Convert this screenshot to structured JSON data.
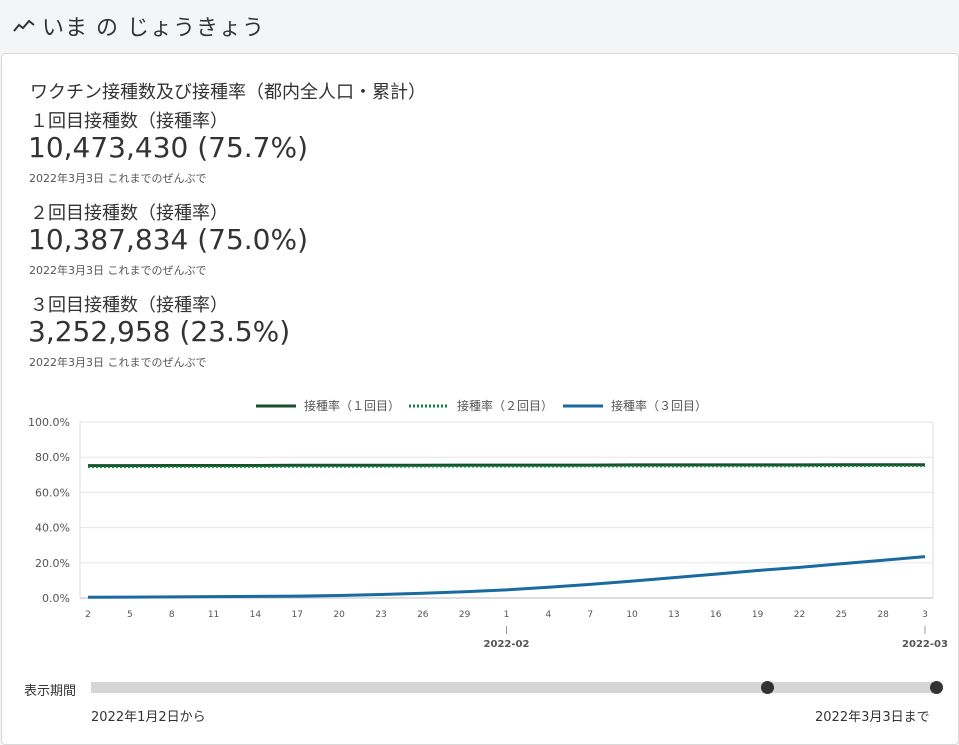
{
  "header": {
    "title": "いま の じょうきょう",
    "icon": "trend-icon"
  },
  "card": {
    "title": "ワクチン接種数及び接種率（都内全人口・累計）",
    "stats": [
      {
        "label": "１回目接種数（接種率）",
        "value": "10,473,430 (75.7%)",
        "note": "2022年3月3日 これまでのぜんぶで"
      },
      {
        "label": "２回目接種数（接種率）",
        "value": "10,387,834 (75.0%)",
        "note": "2022年3月3日 これまでのぜんぶで"
      },
      {
        "label": "３回目接種数（接種率）",
        "value": "3,252,958 (23.5%)",
        "note": "2022年3月3日 これまでのぜんぶで"
      }
    ]
  },
  "chart_data": {
    "type": "line",
    "ylim": [
      0,
      100
    ],
    "y_ticks": [
      "100.0%",
      "80.0%",
      "60.0%",
      "40.0%",
      "20.0%",
      "0.0%"
    ],
    "x_tick_labels": [
      "2",
      "5",
      "8",
      "11",
      "14",
      "17",
      "20",
      "23",
      "26",
      "29",
      "1",
      "4",
      "7",
      "10",
      "13",
      "16",
      "19",
      "22",
      "25",
      "28",
      "3"
    ],
    "x_secondary_labels": [
      {
        "index": 10,
        "label": "2022-02"
      },
      {
        "index": 20,
        "label": "2022-03"
      }
    ],
    "x": [
      "2022-01-02",
      "2022-01-05",
      "2022-01-08",
      "2022-01-11",
      "2022-01-14",
      "2022-01-17",
      "2022-01-20",
      "2022-01-23",
      "2022-01-26",
      "2022-01-29",
      "2022-02-01",
      "2022-02-04",
      "2022-02-07",
      "2022-02-10",
      "2022-02-13",
      "2022-02-16",
      "2022-02-19",
      "2022-02-22",
      "2022-02-25",
      "2022-02-28",
      "2022-03-03"
    ],
    "series": [
      {
        "name": "接種率（１回目）",
        "color": "#1a4d2e",
        "dash": "solid",
        "values": [
          75.2,
          75.2,
          75.3,
          75.3,
          75.3,
          75.4,
          75.4,
          75.4,
          75.4,
          75.5,
          75.5,
          75.5,
          75.5,
          75.6,
          75.6,
          75.6,
          75.6,
          75.6,
          75.7,
          75.7,
          75.7
        ]
      },
      {
        "name": "接種率（２回目）",
        "color": "#0a8a3a",
        "dash": "dotted",
        "values": [
          74.4,
          74.4,
          74.5,
          74.5,
          74.5,
          74.6,
          74.6,
          74.6,
          74.7,
          74.7,
          74.7,
          74.7,
          74.8,
          74.8,
          74.8,
          74.9,
          74.9,
          74.9,
          74.9,
          75.0,
          75.0
        ]
      },
      {
        "name": "接種率（３回目）",
        "color": "#1a6aa0",
        "dash": "solid",
        "values": [
          0.4,
          0.5,
          0.6,
          0.8,
          0.9,
          1.1,
          1.4,
          2.0,
          2.7,
          3.6,
          4.6,
          6.1,
          7.7,
          9.6,
          11.6,
          13.6,
          15.6,
          17.4,
          19.5,
          21.5,
          23.5
        ]
      }
    ]
  },
  "period": {
    "label": "表示期間",
    "from_text": "2022年1月2日から",
    "to_text": "2022年3月3日まで",
    "handle_left_fraction": 0.8,
    "handle_right_fraction": 1.0
  }
}
